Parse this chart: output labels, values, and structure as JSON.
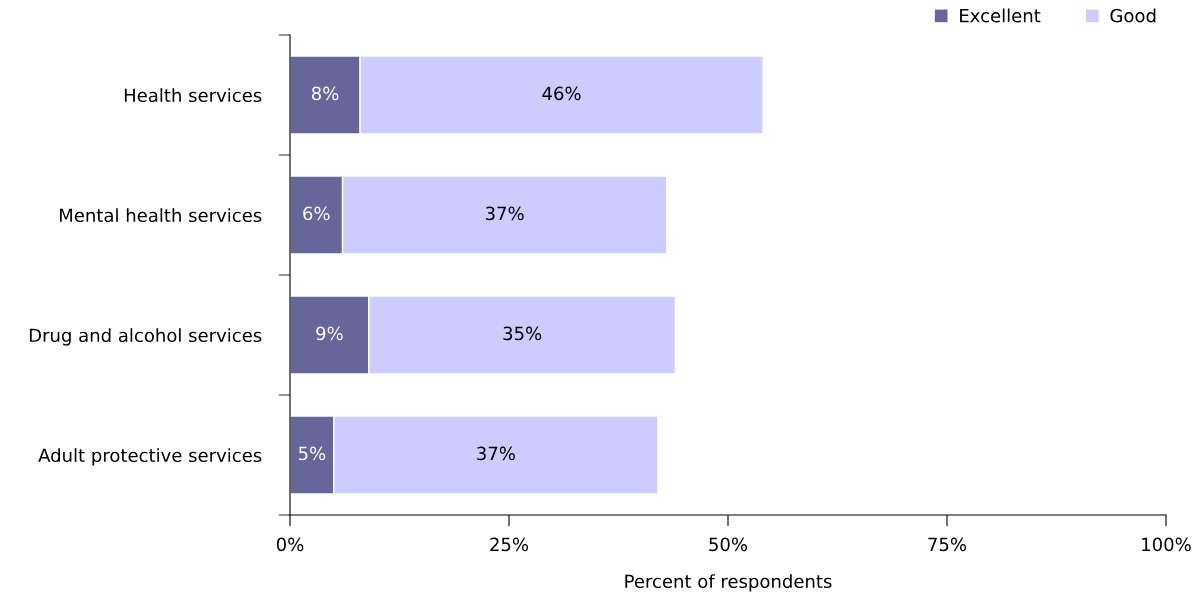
{
  "chart_data": {
    "type": "bar",
    "orientation": "horizontal",
    "stacked": true,
    "xlabel": "Percent of respondents",
    "categories": [
      "Health services",
      "Mental health services",
      "Drug and alcohol services",
      "Adult protective services"
    ],
    "series": [
      {
        "name": "Excellent",
        "color": "#67669a",
        "values": [
          8,
          6,
          9,
          5
        ],
        "value_labels": [
          "8%",
          "6%",
          "9%",
          "5%"
        ]
      },
      {
        "name": "Good",
        "color": "#ccccff",
        "values": [
          46,
          37,
          35,
          37
        ],
        "value_labels": [
          "46%",
          "37%",
          "35%",
          "37%"
        ]
      }
    ],
    "xlim": [
      0,
      100
    ],
    "xticks": [
      {
        "value": 0,
        "label": "0%"
      },
      {
        "value": 25,
        "label": "25%"
      },
      {
        "value": 50,
        "label": "50%"
      },
      {
        "value": 75,
        "label": "75%"
      },
      {
        "value": 100,
        "label": "100%"
      }
    ],
    "grid": false,
    "legend": "top right"
  }
}
